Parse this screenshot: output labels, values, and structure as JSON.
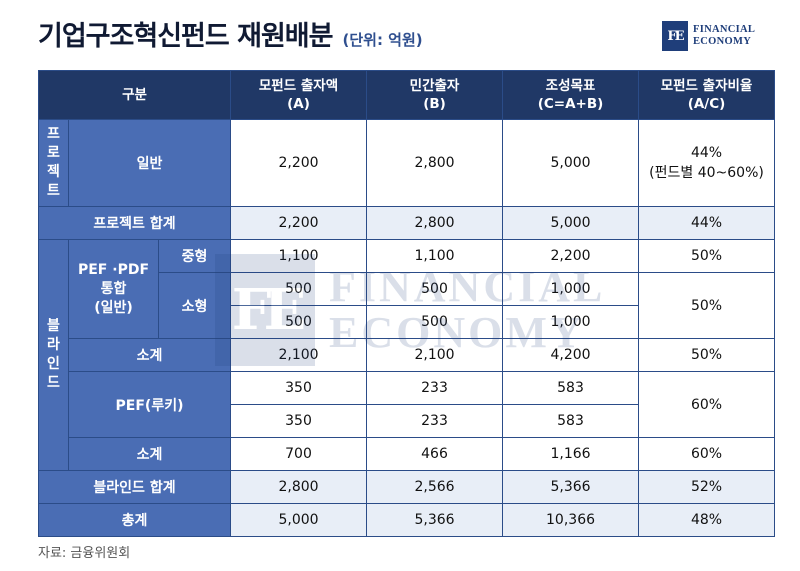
{
  "header": {
    "title": "기업구조혁신펀드 재원배분",
    "unit": "(단위: 억원)"
  },
  "logo": {
    "mark": "FE",
    "line1": "FINANCIAL",
    "line2": "ECONOMY",
    "color": "#1f3e7a"
  },
  "table": {
    "columns": {
      "category": "구분",
      "mother_line1": "모펀드 출자액",
      "mother_line2": "(A)",
      "private_line1": "민간출자",
      "private_line2": "(B)",
      "target_line1": "조성목표",
      "target_line2": "(C=A+B)",
      "ratio_line1": "모펀드 출자비율",
      "ratio_line2": "(A/C)"
    },
    "project": {
      "group_label": [
        "프",
        "로",
        "젝",
        "트"
      ],
      "general": {
        "label": "일반",
        "a": "2,200",
        "b": "2,800",
        "c": "5,000",
        "ratio": "44%",
        "ratio_note": "(펀드별 40~60%)"
      },
      "total": {
        "label": "프로젝트 합계",
        "a": "2,200",
        "b": "2,800",
        "c": "5,000",
        "ratio": "44%"
      }
    },
    "blind": {
      "group_label": [
        "블",
        "라",
        "인",
        "드"
      ],
      "pef_pdf": {
        "label_line1": "PEF ·PDF",
        "label_line2": "통합",
        "label_line3": "(일반)",
        "medium": {
          "label": "중형",
          "a": "1,100",
          "b": "1,100",
          "c": "2,200",
          "ratio": "50%"
        },
        "small": {
          "label": "소형",
          "rows": [
            {
              "a": "500",
              "b": "500",
              "c": "1,000"
            },
            {
              "a": "500",
              "b": "500",
              "c": "1,000"
            }
          ],
          "ratio": "50%"
        },
        "subtotal": {
          "label": "소계",
          "a": "2,100",
          "b": "2,100",
          "c": "4,200",
          "ratio": "50%"
        }
      },
      "pef_rookie": {
        "label": "PEF(루키)",
        "rows": [
          {
            "a": "350",
            "b": "233",
            "c": "583"
          },
          {
            "a": "350",
            "b": "233",
            "c": "583"
          }
        ],
        "ratio": "60%",
        "subtotal": {
          "label": "소계",
          "a": "700",
          "b": "466",
          "c": "1,166",
          "ratio": "60%"
        }
      },
      "total": {
        "label": "블라인드 합계",
        "a": "2,800",
        "b": "2,566",
        "c": "5,366",
        "ratio": "52%"
      }
    },
    "grand_total": {
      "label": "총계",
      "a": "5,000",
      "b": "5,366",
      "c": "10,366",
      "ratio": "48%"
    }
  },
  "source": "자료: 금융위원회",
  "colors": {
    "header_bg": "#203866",
    "label_bg": "#4a6db4",
    "sum_row_bg": "#e8eef7",
    "title": "#101a33"
  }
}
